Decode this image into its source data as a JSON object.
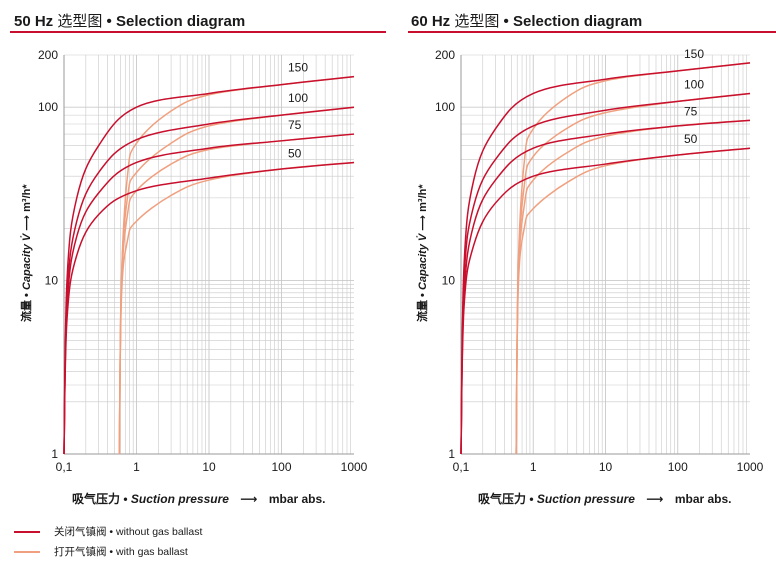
{
  "colors": {
    "accent": "#c8102e",
    "without_gas_ballast": "#c8102e",
    "with_gas_ballast": "#f0a07f",
    "grid": "#c9c9c9"
  },
  "left": {
    "title_main": "50 Hz",
    "title_zh": "选型图",
    "title_sep": "•",
    "title_en": "Selection diagram"
  },
  "right": {
    "title_main": "60 Hz",
    "title_zh": "选型图",
    "title_sep": "•",
    "title_en": "Selection diagram"
  },
  "axes": {
    "x_label_zh": "吸气压力",
    "x_label_sep": "•",
    "x_label_en": "Suction pressure",
    "x_arrow": "⟶",
    "x_unit": "mbar abs.",
    "y_label_zh": "流量",
    "y_label_sep": "•",
    "y_label_en": "Capacity V̇",
    "y_arrow": "⟶",
    "y_unit": "m³/h*"
  },
  "legend": {
    "without_label": "关闭气镇阀 • without gas ballast",
    "with_label": "打开气镇阀 • with gas ballast"
  },
  "chart_data": [
    {
      "type": "line",
      "title": "50 Hz 选型图 • Selection diagram",
      "xlabel": "吸气压力 • Suction pressure ⟶ mbar abs.",
      "ylabel": "流量 • Capacity V̇ ⟶ m³/h*",
      "xscale": "log",
      "yscale": "log",
      "xlim": [
        0.1,
        1000
      ],
      "ylim": [
        1,
        200
      ],
      "xticks": [
        {
          "v": 0.1,
          "t": "0,1"
        },
        {
          "v": 1,
          "t": "1"
        },
        {
          "v": 10,
          "t": "10"
        },
        {
          "v": 100,
          "t": "100"
        },
        {
          "v": 1000,
          "t": "1000"
        }
      ],
      "yticks": [
        {
          "v": 1,
          "t": "1"
        },
        {
          "v": 10,
          "t": "10"
        },
        {
          "v": 100,
          "t": "100"
        },
        {
          "v": 200,
          "t": "200"
        }
      ],
      "grid": true,
      "series": [
        {
          "name": "150",
          "group": "without gas ballast",
          "x": [
            0.1,
            0.11,
            0.15,
            0.3,
            1,
            10,
            100,
            1000
          ],
          "y": [
            1,
            10,
            30,
            60,
            100,
            120,
            135,
            150
          ]
        },
        {
          "name": "100",
          "group": "without gas ballast",
          "x": [
            0.1,
            0.11,
            0.15,
            0.3,
            1,
            10,
            100,
            1000
          ],
          "y": [
            1,
            8,
            22,
            42,
            65,
            80,
            90,
            100
          ]
        },
        {
          "name": "75",
          "group": "without gas ballast",
          "x": [
            0.1,
            0.11,
            0.15,
            0.3,
            1,
            10,
            100,
            1000
          ],
          "y": [
            1,
            7,
            18,
            32,
            48,
            58,
            64,
            70
          ]
        },
        {
          "name": "50",
          "group": "without gas ballast",
          "x": [
            0.1,
            0.11,
            0.15,
            0.3,
            1,
            10,
            100,
            1000
          ],
          "y": [
            1,
            6,
            14,
            24,
            33,
            39,
            44,
            48
          ]
        },
        {
          "name": "150",
          "group": "with gas ballast",
          "x": [
            0.58,
            0.62,
            0.75,
            1,
            3,
            10,
            100,
            1000
          ],
          "y": [
            1,
            10,
            40,
            62,
            95,
            118,
            135,
            150
          ]
        },
        {
          "name": "100",
          "group": "with gas ballast",
          "x": [
            0.58,
            0.62,
            0.75,
            1,
            3,
            10,
            100,
            1000
          ],
          "y": [
            1,
            10,
            30,
            42,
            62,
            78,
            90,
            100
          ]
        },
        {
          "name": "75",
          "group": "with gas ballast",
          "x": [
            0.58,
            0.62,
            0.75,
            1,
            3,
            10,
            100,
            1000
          ],
          "y": [
            1,
            9,
            24,
            33,
            47,
            57,
            64,
            70
          ]
        },
        {
          "name": "50",
          "group": "with gas ballast",
          "x": [
            0.58,
            0.62,
            0.75,
            1,
            3,
            10,
            100,
            1000
          ],
          "y": [
            1,
            8,
            17,
            22,
            31,
            38,
            44,
            48
          ]
        }
      ],
      "annotations": [
        "150",
        "100",
        "75",
        "50"
      ]
    },
    {
      "type": "line",
      "title": "60 Hz 选型图 • Selection diagram",
      "xlabel": "吸气压力 • Suction pressure ⟶ mbar abs.",
      "ylabel": "流量 • Capacity V̇ ⟶ m³/h*",
      "xscale": "log",
      "yscale": "log",
      "xlim": [
        0.1,
        1000
      ],
      "ylim": [
        1,
        200
      ],
      "xticks": [
        {
          "v": 0.1,
          "t": "0,1"
        },
        {
          "v": 1,
          "t": "1"
        },
        {
          "v": 10,
          "t": "10"
        },
        {
          "v": 100,
          "t": "100"
        },
        {
          "v": 1000,
          "t": "1000"
        }
      ],
      "yticks": [
        {
          "v": 1,
          "t": "1"
        },
        {
          "v": 10,
          "t": "10"
        },
        {
          "v": 100,
          "t": "100"
        },
        {
          "v": 200,
          "t": "200"
        }
      ],
      "grid": true,
      "series": [
        {
          "name": "150",
          "group": "without gas ballast",
          "x": [
            0.1,
            0.11,
            0.15,
            0.3,
            1,
            10,
            100,
            1000
          ],
          "y": [
            1,
            12,
            38,
            75,
            120,
            145,
            162,
            180
          ]
        },
        {
          "name": "100",
          "group": "without gas ballast",
          "x": [
            0.1,
            0.11,
            0.15,
            0.3,
            1,
            10,
            100,
            1000
          ],
          "y": [
            1,
            10,
            27,
            50,
            78,
            96,
            108,
            120
          ]
        },
        {
          "name": "75",
          "group": "without gas ballast",
          "x": [
            0.1,
            0.11,
            0.15,
            0.3,
            1,
            10,
            100,
            1000
          ],
          "y": [
            1,
            8,
            21,
            38,
            58,
            70,
            78,
            84
          ]
        },
        {
          "name": "50",
          "group": "without gas ballast",
          "x": [
            0.1,
            0.11,
            0.15,
            0.3,
            1,
            10,
            100,
            1000
          ],
          "y": [
            1,
            7,
            16,
            28,
            40,
            47,
            53,
            58
          ]
        },
        {
          "name": "150",
          "group": "with gas ballast",
          "x": [
            0.58,
            0.62,
            0.75,
            1,
            3,
            10,
            100,
            1000
          ],
          "y": [
            1,
            12,
            48,
            75,
            115,
            142,
            162,
            180
          ]
        },
        {
          "name": "100",
          "group": "with gas ballast",
          "x": [
            0.58,
            0.62,
            0.75,
            1,
            3,
            10,
            100,
            1000
          ],
          "y": [
            1,
            11,
            35,
            52,
            76,
            93,
            108,
            120
          ]
        },
        {
          "name": "75",
          "group": "with gas ballast",
          "x": [
            0.58,
            0.62,
            0.75,
            1,
            3,
            10,
            100,
            1000
          ],
          "y": [
            1,
            10,
            27,
            38,
            55,
            68,
            78,
            84
          ]
        },
        {
          "name": "50",
          "group": "with gas ballast",
          "x": [
            0.58,
            0.62,
            0.75,
            1,
            3,
            10,
            100,
            1000
          ],
          "y": [
            1,
            9,
            20,
            26,
            37,
            46,
            53,
            58
          ]
        }
      ],
      "annotations": [
        "150",
        "100",
        "75",
        "50"
      ]
    }
  ]
}
